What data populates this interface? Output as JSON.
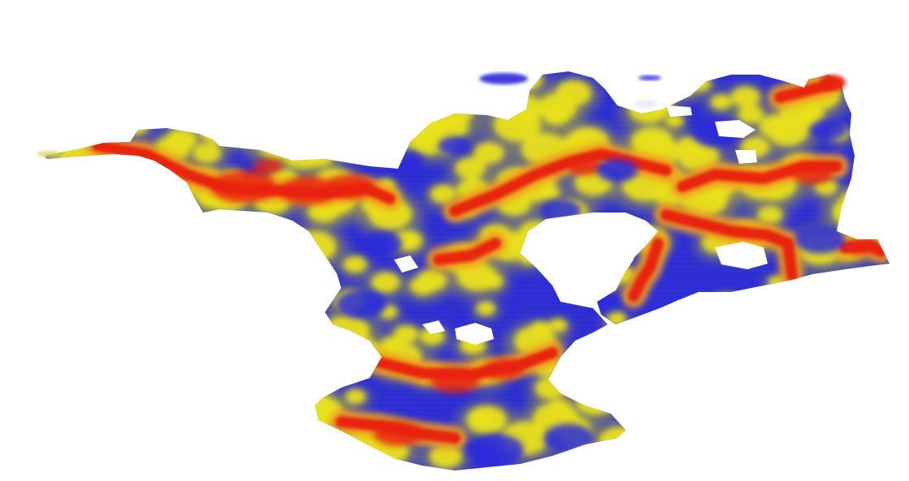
{
  "view": {
    "type": "3d-surface-heightmap",
    "background": "#ffffff",
    "color_ramp": {
      "low": "#2b2bdc",
      "mid_low": "#8a8a5c",
      "mid": "#e8e020",
      "mid_high": "#f0a020",
      "high": "#e82010"
    },
    "printed_text": ""
  }
}
